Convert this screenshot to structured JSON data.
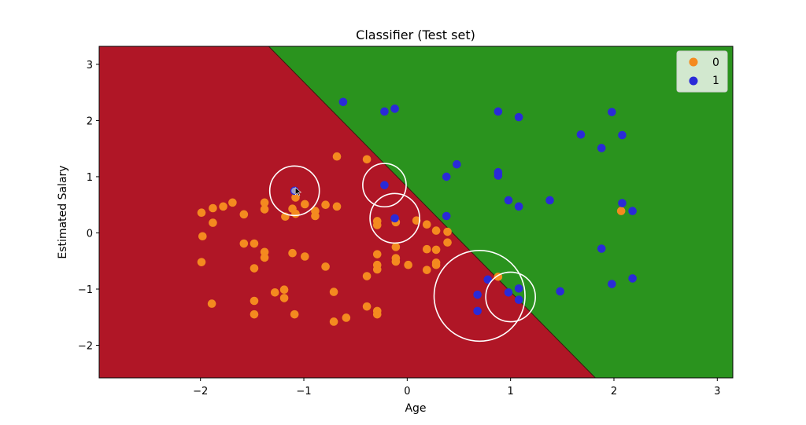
{
  "chart_data": {
    "type": "scatter",
    "title": "Classifier (Test set)",
    "xlabel": "Age",
    "ylabel": "Estimated Salary",
    "xlim": [
      -2.98,
      3.15
    ],
    "ylim": [
      -2.58,
      3.32
    ],
    "xticks": [
      -2,
      -1,
      0,
      1,
      2,
      3
    ],
    "yticks": [
      -2,
      -1,
      0,
      1,
      2,
      3
    ],
    "grid": false,
    "legend_position": "top-right",
    "regions": [
      {
        "class": "0",
        "color": "#b01626",
        "side": "lower-left"
      },
      {
        "class": "1",
        "color": "#2a931e",
        "side": "upper-right"
      }
    ],
    "decision_boundary": [
      [
        -1.34,
        3.32
      ],
      [
        1.82,
        -2.58
      ]
    ],
    "series": [
      {
        "name": "0",
        "color": "#f48a1f",
        "points": [
          [
            -1.99,
            0.36
          ],
          [
            -1.88,
            0.44
          ],
          [
            -1.88,
            0.18
          ],
          [
            -1.78,
            0.47
          ],
          [
            -1.69,
            0.54
          ],
          [
            -1.58,
            0.33
          ],
          [
            -1.98,
            -0.06
          ],
          [
            -1.99,
            -0.52
          ],
          [
            -1.58,
            -0.19
          ],
          [
            -1.48,
            -0.19
          ],
          [
            -1.38,
            0.42
          ],
          [
            -1.38,
            0.54
          ],
          [
            -1.38,
            -0.34
          ],
          [
            -1.38,
            -0.44
          ],
          [
            -1.48,
            -0.63
          ],
          [
            -1.18,
            0.29
          ],
          [
            -1.11,
            0.43
          ],
          [
            -1.08,
            0.34
          ],
          [
            -1.08,
            0.63
          ],
          [
            -0.99,
            0.51
          ],
          [
            -0.89,
            0.39
          ],
          [
            -0.89,
            0.3
          ],
          [
            -0.79,
            0.5
          ],
          [
            -1.11,
            -0.36
          ],
          [
            -0.99,
            -0.42
          ],
          [
            -0.79,
            -0.6
          ],
          [
            -0.68,
            1.36
          ],
          [
            -0.68,
            0.47
          ],
          [
            -0.39,
            1.31
          ],
          [
            -0.29,
            0.21
          ],
          [
            -0.29,
            0.14
          ],
          [
            -0.29,
            -0.38
          ],
          [
            -0.29,
            -0.57
          ],
          [
            -0.29,
            -0.65
          ],
          [
            -0.39,
            -0.77
          ],
          [
            -0.11,
            0.19
          ],
          [
            -0.11,
            -0.25
          ],
          [
            -0.11,
            -0.45
          ],
          [
            -0.11,
            -0.51
          ],
          [
            0.01,
            -0.57
          ],
          [
            0.09,
            0.22
          ],
          [
            0.19,
            0.15
          ],
          [
            0.28,
            0.04
          ],
          [
            0.28,
            -0.3
          ],
          [
            0.28,
            -0.53
          ],
          [
            0.28,
            -0.57
          ],
          [
            0.19,
            -0.29
          ],
          [
            0.19,
            -0.66
          ],
          [
            0.39,
            0.02
          ],
          [
            0.39,
            -0.17
          ],
          [
            0.88,
            -0.78
          ],
          [
            2.07,
            0.39
          ],
          [
            -1.89,
            -1.26
          ],
          [
            -1.48,
            -1.21
          ],
          [
            -1.48,
            -1.45
          ],
          [
            -1.28,
            -1.06
          ],
          [
            -1.19,
            -1.01
          ],
          [
            -1.19,
            -1.16
          ],
          [
            -1.09,
            -1.45
          ],
          [
            -0.71,
            -1.05
          ],
          [
            -0.71,
            -1.58
          ],
          [
            -0.59,
            -1.51
          ],
          [
            -0.39,
            -1.31
          ],
          [
            -0.29,
            -1.39
          ],
          [
            -0.29,
            -1.45
          ]
        ]
      },
      {
        "name": "1",
        "color": "#2a2ad8",
        "points": [
          [
            -0.62,
            2.33
          ],
          [
            -0.22,
            2.16
          ],
          [
            -0.12,
            2.21
          ],
          [
            -0.22,
            0.85
          ],
          [
            -0.12,
            0.26
          ],
          [
            0.38,
            1.0
          ],
          [
            0.48,
            1.22
          ],
          [
            0.38,
            0.3
          ],
          [
            0.88,
            2.16
          ],
          [
            0.88,
            1.08
          ],
          [
            0.88,
            1.02
          ],
          [
            0.98,
            0.58
          ],
          [
            1.08,
            2.06
          ],
          [
            1.08,
            0.47
          ],
          [
            1.38,
            0.58
          ],
          [
            1.68,
            1.75
          ],
          [
            1.88,
            1.51
          ],
          [
            1.98,
            2.15
          ],
          [
            2.08,
            1.74
          ],
          [
            2.08,
            0.53
          ],
          [
            2.18,
            0.39
          ],
          [
            1.88,
            -0.28
          ],
          [
            1.98,
            -0.91
          ],
          [
            2.18,
            -0.81
          ],
          [
            1.48,
            -1.04
          ],
          [
            0.78,
            -0.83
          ],
          [
            0.68,
            -1.1
          ],
          [
            0.68,
            -1.39
          ],
          [
            0.98,
            -1.06
          ],
          [
            1.08,
            -0.99
          ],
          [
            1.08,
            -1.19
          ],
          [
            -1.09,
            0.75
          ]
        ]
      }
    ],
    "annotations": [
      {
        "type": "circle",
        "cx": -1.09,
        "cy": 0.75,
        "r": 0.24
      },
      {
        "type": "circle",
        "cx": -0.22,
        "cy": 0.85,
        "r": 0.21
      },
      {
        "type": "circle",
        "cx": -0.12,
        "cy": 0.26,
        "r": 0.24
      },
      {
        "type": "circle",
        "cx": 0.7,
        "cy": -1.12,
        "r": 0.44
      },
      {
        "type": "circle",
        "cx": 1.0,
        "cy": -1.14,
        "r": 0.24
      }
    ]
  }
}
